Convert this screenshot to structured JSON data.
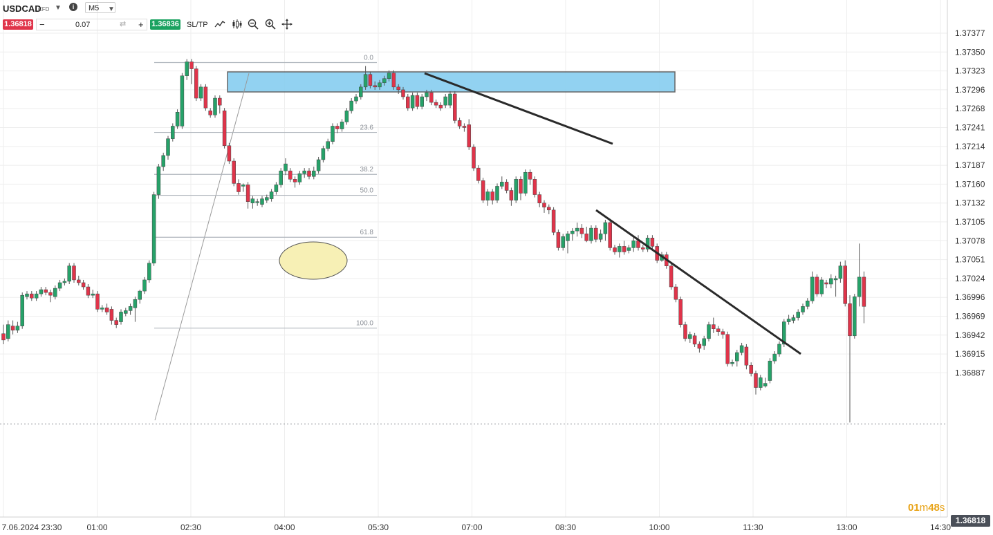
{
  "header": {
    "symbol": "USDCAD",
    "symbol_type": "CFD",
    "info_icon": "i",
    "timeframe": "M5",
    "bid": "1.36818",
    "ask": "1.36836",
    "quantity": "0.07",
    "minus": "−",
    "plus": "+",
    "sltp": "SL/TP"
  },
  "colors": {
    "up": "#26a269",
    "down": "#e0344a",
    "zone": "#87cef0",
    "highlight": "#f7f0b5"
  },
  "chart_data": {
    "type": "candlestick",
    "instrument": "USDCAD",
    "timeframe": "M5",
    "y_ticks": [
      "1.37377",
      "1.37350",
      "1.37323",
      "1.37296",
      "1.37268",
      "1.37241",
      "1.37214",
      "1.37187",
      "1.37160",
      "1.37132",
      "1.37105",
      "1.37078",
      "1.37051",
      "1.37024",
      "1.36996",
      "1.36969",
      "1.36942",
      "1.36915",
      "1.36887"
    ],
    "x_ticks": [
      "7.06.2024 23:30",
      "01:00",
      "02:30",
      "04:00",
      "05:30",
      "07:00",
      "08:30",
      "10:00",
      "11:30",
      "13:00",
      "14:30"
    ],
    "fib_levels": [
      {
        "label": "0.0",
        "price": 1.37335
      },
      {
        "label": "23.6",
        "price": 1.37235
      },
      {
        "label": "38.2",
        "price": 1.37175
      },
      {
        "label": "50.0",
        "price": 1.37145
      },
      {
        "label": "61.8",
        "price": 1.37085
      },
      {
        "label": "100.0",
        "price": 1.36955
      }
    ],
    "current_price": "1.36818",
    "timer": {
      "min": "01",
      "m": "m",
      "sec": "48",
      "s": "s"
    },
    "candles": [
      [
        1.36947,
        1.36938,
        1.3696,
        1.36932
      ],
      [
        1.3694,
        1.3696,
        1.36966,
        1.36936
      ],
      [
        1.36958,
        1.36952,
        1.36966,
        1.36946
      ],
      [
        1.36952,
        1.36958,
        1.36964,
        1.36948
      ],
      [
        1.36958,
        1.37002,
        1.37006,
        1.36954
      ],
      [
        1.37,
        1.37004,
        1.37008,
        1.36996
      ],
      [
        1.37004,
        1.36998,
        1.37008,
        1.36994
      ],
      [
        1.36998,
        1.37004,
        1.37008,
        1.36994
      ],
      [
        1.37004,
        1.3701,
        1.37014,
        1.37
      ],
      [
        1.3701,
        1.37006,
        1.37014,
        1.37002
      ],
      [
        1.37006,
        1.37002,
        1.3701,
        1.36992
      ],
      [
        1.37,
        1.37012,
        1.37016,
        1.36996
      ],
      [
        1.37012,
        1.3702,
        1.37024,
        1.37008
      ],
      [
        1.3702,
        1.37022,
        1.37026,
        1.37016
      ],
      [
        1.37022,
        1.37044,
        1.37048,
        1.37018
      ],
      [
        1.37044,
        1.37024,
        1.37048,
        1.3702
      ],
      [
        1.37024,
        1.3702,
        1.3703,
        1.37016
      ],
      [
        1.3702,
        1.37014,
        1.37024,
        1.3701
      ],
      [
        1.37014,
        1.37002,
        1.37018,
        1.36998
      ],
      [
        1.37002,
        1.37004,
        1.3701,
        1.36998
      ],
      [
        1.37004,
        1.36982,
        1.37008,
        1.36978
      ],
      [
        1.36982,
        1.36984,
        1.36988,
        1.36978
      ],
      [
        1.36984,
        1.36978,
        1.3699,
        1.36974
      ],
      [
        1.36982,
        1.36966,
        1.36986,
        1.3696
      ],
      [
        1.36966,
        1.3696,
        1.3697,
        1.36955
      ],
      [
        1.36964,
        1.36978,
        1.36982,
        1.3696
      ],
      [
        1.36976,
        1.3698,
        1.36984,
        1.36972
      ],
      [
        1.3698,
        1.36986,
        1.3699,
        1.36974
      ],
      [
        1.36984,
        1.36996,
        1.37,
        1.36964
      ],
      [
        1.36996,
        1.37008,
        1.3701,
        1.3699
      ],
      [
        1.37008,
        1.37024,
        1.37028,
        1.37004
      ],
      [
        1.37024,
        1.37048,
        1.37052,
        1.3702
      ],
      [
        1.37048,
        1.37146,
        1.3715,
        1.37044
      ],
      [
        1.37146,
        1.37186,
        1.3719,
        1.3714
      ],
      [
        1.37186,
        1.37202,
        1.37206,
        1.3718
      ],
      [
        1.37202,
        1.37226,
        1.3723,
        1.37196
      ],
      [
        1.37226,
        1.37244,
        1.37248,
        1.37222
      ],
      [
        1.37244,
        1.37264,
        1.37268,
        1.3724
      ],
      [
        1.37244,
        1.37316,
        1.3732,
        1.3724
      ],
      [
        1.37316,
        1.37336,
        1.3734,
        1.3731
      ],
      [
        1.37336,
        1.37326,
        1.3734,
        1.37304
      ],
      [
        1.37326,
        1.37284,
        1.3733,
        1.3728
      ],
      [
        1.37284,
        1.373,
        1.37304,
        1.3728
      ],
      [
        1.373,
        1.3727,
        1.37304,
        1.37266
      ],
      [
        1.37266,
        1.3726,
        1.3727,
        1.37256
      ],
      [
        1.3726,
        1.37284,
        1.37288,
        1.37256
      ],
      [
        1.37284,
        1.37274,
        1.37288,
        1.37262
      ],
      [
        1.37266,
        1.37216,
        1.3727,
        1.37212
      ],
      [
        1.37216,
        1.37194,
        1.3722,
        1.3719
      ],
      [
        1.37194,
        1.37162,
        1.37198,
        1.37158
      ],
      [
        1.37162,
        1.3715,
        1.37168,
        1.37146
      ],
      [
        1.37158,
        1.3716,
        1.37162,
        1.3715
      ],
      [
        1.3716,
        1.37136,
        1.37164,
        1.37126
      ],
      [
        1.37134,
        1.3714,
        1.37144,
        1.37126
      ],
      [
        1.37136,
        1.37136,
        1.3714,
        1.3713
      ],
      [
        1.37132,
        1.3714,
        1.37144,
        1.37128
      ],
      [
        1.37138,
        1.37142,
        1.37146,
        1.37134
      ],
      [
        1.3714,
        1.3715,
        1.37154,
        1.37136
      ],
      [
        1.3715,
        1.3716,
        1.37164,
        1.37146
      ],
      [
        1.3716,
        1.3718,
        1.37184,
        1.37156
      ],
      [
        1.3718,
        1.3719,
        1.37198,
        1.37174
      ],
      [
        1.3718,
        1.37168,
        1.37184,
        1.37164
      ],
      [
        1.37168,
        1.37164,
        1.37172,
        1.37156
      ],
      [
        1.37164,
        1.37176,
        1.3718,
        1.3716
      ],
      [
        1.37176,
        1.3718,
        1.37184,
        1.3717
      ],
      [
        1.3718,
        1.37172,
        1.37184,
        1.37168
      ],
      [
        1.37172,
        1.3718,
        1.37186,
        1.37168
      ],
      [
        1.3718,
        1.37196,
        1.372,
        1.37176
      ],
      [
        1.37196,
        1.37212,
        1.37216,
        1.37192
      ],
      [
        1.37212,
        1.37222,
        1.37226,
        1.37208
      ],
      [
        1.37222,
        1.37244,
        1.37248,
        1.37218
      ],
      [
        1.37244,
        1.3724,
        1.37248,
        1.37234
      ],
      [
        1.3724,
        1.3725,
        1.37254,
        1.37236
      ],
      [
        1.3725,
        1.37266,
        1.3727,
        1.37246
      ],
      [
        1.37266,
        1.3728,
        1.37284,
        1.37262
      ],
      [
        1.3728,
        1.37286,
        1.3729,
        1.37276
      ],
      [
        1.37286,
        1.373,
        1.37304,
        1.37282
      ],
      [
        1.373,
        1.37318,
        1.3733,
        1.37296
      ],
      [
        1.37318,
        1.37302,
        1.37322,
        1.37298
      ],
      [
        1.37302,
        1.373,
        1.37308,
        1.37296
      ],
      [
        1.373,
        1.37306,
        1.3731,
        1.37296
      ],
      [
        1.37306,
        1.37312,
        1.37316,
        1.37302
      ],
      [
        1.37312,
        1.3732,
        1.37324,
        1.37308
      ],
      [
        1.3732,
        1.373,
        1.37324,
        1.37296
      ],
      [
        1.373,
        1.37296,
        1.37304,
        1.3729
      ],
      [
        1.37296,
        1.37286,
        1.373,
        1.37282
      ],
      [
        1.37286,
        1.3727,
        1.3729,
        1.37266
      ],
      [
        1.3727,
        1.37288,
        1.37292,
        1.37266
      ],
      [
        1.37288,
        1.37272,
        1.37292,
        1.37268
      ],
      [
        1.37272,
        1.37286,
        1.3729,
        1.37268
      ],
      [
        1.37286,
        1.37292,
        1.37296,
        1.3728
      ],
      [
        1.37292,
        1.37278,
        1.37296,
        1.37274
      ],
      [
        1.37278,
        1.37274,
        1.37282,
        1.3727
      ],
      [
        1.37274,
        1.3727,
        1.37278,
        1.37266
      ],
      [
        1.37274,
        1.37286,
        1.3729,
        1.3727
      ],
      [
        1.37274,
        1.3729,
        1.37294,
        1.3727
      ],
      [
        1.3729,
        1.37252,
        1.37294,
        1.37248
      ],
      [
        1.37252,
        1.37244,
        1.37256,
        1.3724
      ],
      [
        1.37244,
        1.37242,
        1.37248,
        1.37236
      ],
      [
        1.37246,
        1.37214,
        1.37254,
        1.3721
      ],
      [
        1.37214,
        1.37184,
        1.37218,
        1.3718
      ],
      [
        1.37184,
        1.37166,
        1.37188,
        1.37162
      ],
      [
        1.37166,
        1.37138,
        1.3717,
        1.37134
      ],
      [
        1.37138,
        1.3715,
        1.37154,
        1.3713
      ],
      [
        1.3715,
        1.37138,
        1.37154,
        1.37132
      ],
      [
        1.37138,
        1.37158,
        1.37162,
        1.37134
      ],
      [
        1.37158,
        1.37164,
        1.37172,
        1.37154
      ],
      [
        1.37164,
        1.37152,
        1.37168,
        1.37148
      ],
      [
        1.37152,
        1.37138,
        1.37156,
        1.3713
      ],
      [
        1.37138,
        1.37168,
        1.37172,
        1.37134
      ],
      [
        1.37168,
        1.37148,
        1.37172,
        1.37138
      ],
      [
        1.37148,
        1.37178,
        1.37182,
        1.37144
      ],
      [
        1.37178,
        1.37168,
        1.37182,
        1.3716
      ],
      [
        1.37168,
        1.37146,
        1.37172,
        1.37142
      ],
      [
        1.37146,
        1.37134,
        1.3715,
        1.37128
      ],
      [
        1.37134,
        1.37128,
        1.37138,
        1.3712
      ],
      [
        1.37128,
        1.37124,
        1.37132,
        1.37118
      ],
      [
        1.37124,
        1.37092,
        1.37128,
        1.37088
      ],
      [
        1.37092,
        1.3707,
        1.37096,
        1.37066
      ],
      [
        1.3707,
        1.37086,
        1.3709,
        1.37066
      ],
      [
        1.3708,
        1.3709,
        1.37094,
        1.37062
      ],
      [
        1.3709,
        1.37094,
        1.37098,
        1.3708
      ],
      [
        1.37094,
        1.37098,
        1.37106,
        1.37086
      ],
      [
        1.37098,
        1.3709,
        1.37104,
        1.37084
      ],
      [
        1.3709,
        1.3708,
        1.371,
        1.37078
      ],
      [
        1.3708,
        1.37098,
        1.37102,
        1.37076
      ],
      [
        1.37098,
        1.37082,
        1.37102,
        1.37078
      ],
      [
        1.37082,
        1.3709,
        1.37096,
        1.37078
      ],
      [
        1.3709,
        1.37106,
        1.3711,
        1.3708
      ],
      [
        1.37106,
        1.3707,
        1.3711,
        1.37066
      ],
      [
        1.3707,
        1.37064,
        1.37074,
        1.3706
      ],
      [
        1.37064,
        1.37072,
        1.37076,
        1.37056
      ],
      [
        1.37072,
        1.37064,
        1.3708,
        1.3706
      ],
      [
        1.37066,
        1.3707,
        1.37074,
        1.37062
      ],
      [
        1.3707,
        1.3708,
        1.37086,
        1.37064
      ],
      [
        1.3708,
        1.3707,
        1.37088,
        1.37066
      ],
      [
        1.3707,
        1.37068,
        1.37074,
        1.37064
      ],
      [
        1.37068,
        1.37084,
        1.37088,
        1.37064
      ],
      [
        1.37084,
        1.37072,
        1.37088,
        1.37066
      ],
      [
        1.37072,
        1.37052,
        1.37076,
        1.37048
      ],
      [
        1.37052,
        1.3706,
        1.37064,
        1.3705
      ],
      [
        1.3706,
        1.37044,
        1.37064,
        1.3704
      ],
      [
        1.37044,
        1.37014,
        1.37048,
        1.3701
      ],
      [
        1.37014,
        1.36996,
        1.37018,
        1.36992
      ],
      [
        1.36996,
        1.3696,
        1.37,
        1.36956
      ],
      [
        1.3696,
        1.3694,
        1.36964,
        1.36936
      ],
      [
        1.3694,
        1.36946,
        1.3695,
        1.36934
      ],
      [
        1.36944,
        1.36932,
        1.36948,
        1.36928
      ],
      [
        1.36932,
        1.36926,
        1.36936,
        1.3692
      ],
      [
        1.3693,
        1.3694,
        1.36944,
        1.36924
      ],
      [
        1.3694,
        1.3696,
        1.36964,
        1.36936
      ],
      [
        1.3696,
        1.36954,
        1.3697,
        1.36948
      ],
      [
        1.36954,
        1.3695,
        1.36958,
        1.36944
      ],
      [
        1.3695,
        1.36946,
        1.36954,
        1.3694
      ],
      [
        1.36946,
        1.36904,
        1.3695,
        1.369
      ],
      [
        1.36904,
        1.36906,
        1.3691,
        1.369
      ],
      [
        1.36908,
        1.3692,
        1.36924,
        1.369
      ],
      [
        1.3692,
        1.3693,
        1.36934,
        1.36916
      ],
      [
        1.36928,
        1.36902,
        1.36932,
        1.36896
      ],
      [
        1.36902,
        1.3689,
        1.36906,
        1.36886
      ],
      [
        1.3689,
        1.3687,
        1.36894,
        1.3686
      ],
      [
        1.3687,
        1.36884,
        1.36888,
        1.36866
      ],
      [
        1.36872,
        1.36876,
        1.36884,
        1.3687
      ],
      [
        1.3688,
        1.36908,
        1.36912,
        1.36876
      ],
      [
        1.36908,
        1.36918,
        1.36922,
        1.36904
      ],
      [
        1.36918,
        1.36932,
        1.36936,
        1.36914
      ],
      [
        1.36932,
        1.36964,
        1.36968,
        1.36928
      ],
      [
        1.36964,
        1.36968,
        1.36974,
        1.3696
      ],
      [
        1.36966,
        1.3697,
        1.36974,
        1.36962
      ],
      [
        1.3697,
        1.36978,
        1.36982,
        1.36966
      ],
      [
        1.36978,
        1.36986,
        1.3699,
        1.36974
      ],
      [
        1.36986,
        1.36994,
        1.36998,
        1.36982
      ],
      [
        1.36994,
        1.37028,
        1.37036,
        1.3699
      ],
      [
        1.37028,
        1.37004,
        1.37032,
        1.37
      ],
      [
        1.37004,
        1.37024,
        1.37028,
        1.37
      ],
      [
        1.3702,
        1.37018,
        1.37024,
        1.37012
      ],
      [
        1.37018,
        1.37026,
        1.37032,
        1.37012
      ],
      [
        1.37024,
        1.37026,
        1.3703,
        1.37
      ],
      [
        1.37026,
        1.37044,
        1.3705,
        1.3702
      ],
      [
        1.37044,
        1.3699,
        1.37052,
        1.36986
      ],
      [
        1.3699,
        1.36944,
        1.37002,
        1.3682
      ],
      [
        1.36944,
        1.37,
        1.37004,
        1.3694
      ],
      [
        1.37,
        1.37028,
        1.37076,
        1.36986
      ],
      [
        1.37028,
        1.36986,
        1.37036,
        1.36962
      ]
    ]
  }
}
